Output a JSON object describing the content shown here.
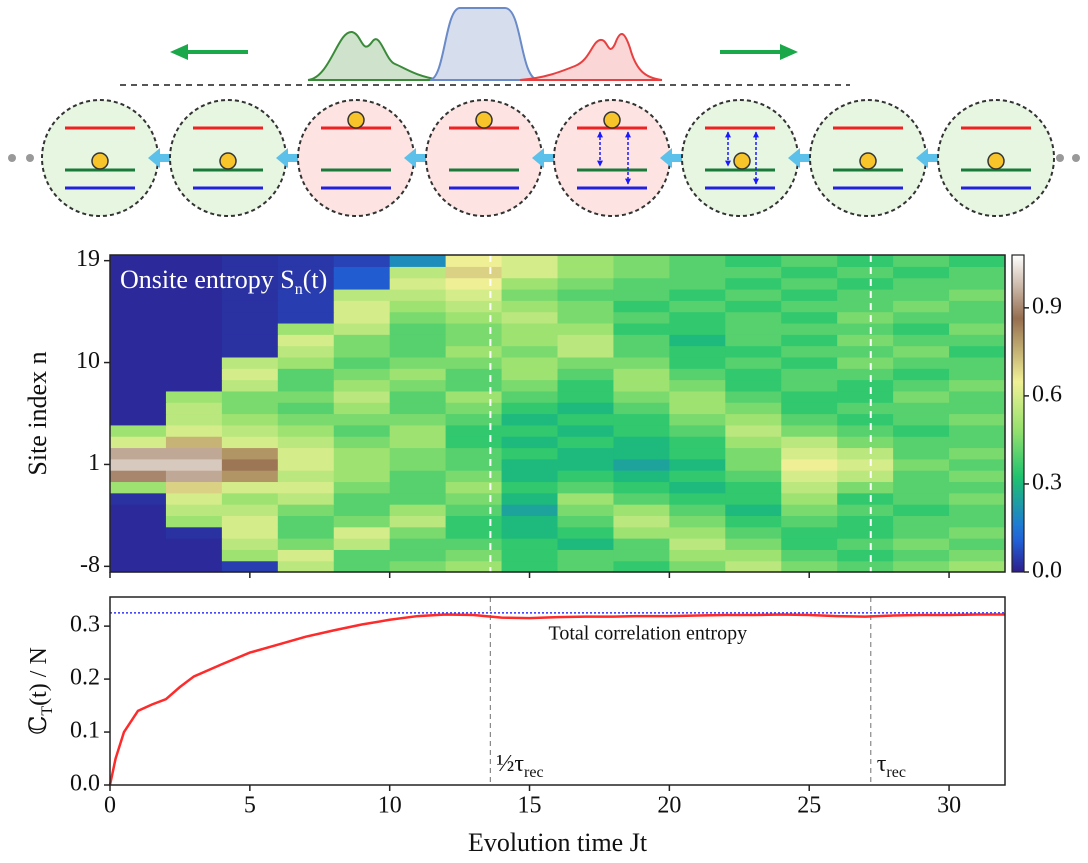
{
  "chart_data": [
    {
      "type": "heatmap",
      "annotation": {
        "main": "Onsite entropy S",
        "sub": "n",
        "rest": "(t)"
      },
      "y_label": "Site index n",
      "x": [
        1,
        3,
        5,
        7,
        9,
        11,
        13,
        15,
        17,
        19,
        21,
        23,
        25,
        27,
        29,
        31
      ],
      "y": [
        -8,
        -7,
        -6,
        -5,
        -4,
        -3,
        -2,
        -1,
        0,
        1,
        2,
        3,
        4,
        5,
        6,
        7,
        8,
        9,
        10,
        11,
        12,
        13,
        14,
        15,
        16,
        17,
        18,
        19
      ],
      "z": [
        [
          0.02,
          0.02,
          0.05,
          0.55,
          0.4,
          0.45,
          0.5,
          0.35,
          0.4,
          0.35,
          0.45,
          0.55,
          0.45,
          0.4,
          0.45,
          0.5
        ],
        [
          0.02,
          0.02,
          0.5,
          0.6,
          0.4,
          0.4,
          0.45,
          0.35,
          0.4,
          0.4,
          0.5,
          0.5,
          0.4,
          0.35,
          0.4,
          0.45
        ],
        [
          0.02,
          0.02,
          0.55,
          0.45,
          0.55,
          0.4,
          0.4,
          0.35,
          0.3,
          0.4,
          0.55,
          0.45,
          0.35,
          0.4,
          0.45,
          0.4
        ],
        [
          0.02,
          0.03,
          0.6,
          0.4,
          0.6,
          0.45,
          0.35,
          0.3,
          0.35,
          0.5,
          0.5,
          0.4,
          0.35,
          0.35,
          0.4,
          0.45
        ],
        [
          0.02,
          0.5,
          0.6,
          0.4,
          0.45,
          0.55,
          0.35,
          0.3,
          0.4,
          0.55,
          0.45,
          0.35,
          0.4,
          0.35,
          0.4,
          0.4
        ],
        [
          0.02,
          0.55,
          0.55,
          0.45,
          0.4,
          0.5,
          0.4,
          0.25,
          0.45,
          0.5,
          0.4,
          0.3,
          0.45,
          0.4,
          0.35,
          0.4
        ],
        [
          0.03,
          0.6,
          0.5,
          0.55,
          0.4,
          0.4,
          0.45,
          0.3,
          0.5,
          0.4,
          0.35,
          0.35,
          0.5,
          0.35,
          0.4,
          0.45
        ],
        [
          0.5,
          0.7,
          0.6,
          0.6,
          0.45,
          0.4,
          0.5,
          0.35,
          0.4,
          0.35,
          0.3,
          0.35,
          0.55,
          0.45,
          0.4,
          0.4
        ],
        [
          0.9,
          0.95,
          0.8,
          0.55,
          0.5,
          0.4,
          0.45,
          0.3,
          0.35,
          0.3,
          0.35,
          0.4,
          0.6,
          0.55,
          0.4,
          0.45
        ],
        [
          1.0,
          1.0,
          0.85,
          0.6,
          0.5,
          0.45,
          0.4,
          0.3,
          0.3,
          0.25,
          0.3,
          0.45,
          0.65,
          0.6,
          0.45,
          0.4
        ],
        [
          0.95,
          0.95,
          0.8,
          0.6,
          0.5,
          0.45,
          0.4,
          0.35,
          0.3,
          0.3,
          0.35,
          0.45,
          0.6,
          0.55,
          0.4,
          0.45
        ],
        [
          0.6,
          0.75,
          0.6,
          0.55,
          0.45,
          0.5,
          0.35,
          0.3,
          0.35,
          0.3,
          0.35,
          0.5,
          0.55,
          0.45,
          0.4,
          0.4
        ],
        [
          0.5,
          0.6,
          0.55,
          0.5,
          0.4,
          0.5,
          0.35,
          0.35,
          0.3,
          0.35,
          0.4,
          0.55,
          0.45,
          0.4,
          0.35,
          0.4
        ],
        [
          0.02,
          0.55,
          0.5,
          0.45,
          0.45,
          0.45,
          0.4,
          0.3,
          0.35,
          0.35,
          0.45,
          0.5,
          0.4,
          0.35,
          0.4,
          0.45
        ],
        [
          0.02,
          0.55,
          0.45,
          0.4,
          0.5,
          0.4,
          0.45,
          0.35,
          0.3,
          0.4,
          0.5,
          0.45,
          0.35,
          0.4,
          0.4,
          0.4
        ],
        [
          0.02,
          0.5,
          0.45,
          0.45,
          0.55,
          0.4,
          0.5,
          0.4,
          0.35,
          0.45,
          0.5,
          0.4,
          0.35,
          0.35,
          0.45,
          0.4
        ],
        [
          0.02,
          0.02,
          0.55,
          0.4,
          0.5,
          0.45,
          0.4,
          0.45,
          0.35,
          0.5,
          0.45,
          0.35,
          0.4,
          0.35,
          0.4,
          0.45
        ],
        [
          0.02,
          0.02,
          0.6,
          0.4,
          0.45,
          0.5,
          0.4,
          0.5,
          0.4,
          0.5,
          0.4,
          0.35,
          0.4,
          0.4,
          0.35,
          0.4
        ],
        [
          0.02,
          0.02,
          0.55,
          0.5,
          0.4,
          0.45,
          0.45,
          0.5,
          0.45,
          0.45,
          0.35,
          0.4,
          0.35,
          0.45,
          0.4,
          0.4
        ],
        [
          0.02,
          0.02,
          0.03,
          0.55,
          0.45,
          0.4,
          0.5,
          0.45,
          0.55,
          0.4,
          0.35,
          0.35,
          0.4,
          0.4,
          0.45,
          0.35
        ],
        [
          0.02,
          0.02,
          0.03,
          0.6,
          0.45,
          0.4,
          0.45,
          0.5,
          0.55,
          0.4,
          0.3,
          0.4,
          0.35,
          0.45,
          0.4,
          0.4
        ],
        [
          0.02,
          0.02,
          0.03,
          0.5,
          0.55,
          0.4,
          0.45,
          0.5,
          0.5,
          0.35,
          0.35,
          0.4,
          0.4,
          0.4,
          0.35,
          0.45
        ],
        [
          0.02,
          0.02,
          0.03,
          0.05,
          0.6,
          0.45,
          0.5,
          0.55,
          0.45,
          0.4,
          0.35,
          0.4,
          0.35,
          0.45,
          0.4,
          0.4
        ],
        [
          0.02,
          0.02,
          0.03,
          0.05,
          0.6,
          0.5,
          0.55,
          0.5,
          0.45,
          0.35,
          0.4,
          0.35,
          0.4,
          0.4,
          0.45,
          0.4
        ],
        [
          0.02,
          0.02,
          0.03,
          0.05,
          0.55,
          0.55,
          0.6,
          0.45,
          0.4,
          0.4,
          0.35,
          0.4,
          0.35,
          0.4,
          0.4,
          0.45
        ],
        [
          0.02,
          0.02,
          0.03,
          0.04,
          0.1,
          0.6,
          0.65,
          0.5,
          0.45,
          0.4,
          0.4,
          0.35,
          0.4,
          0.35,
          0.4,
          0.4
        ],
        [
          0.02,
          0.02,
          0.03,
          0.04,
          0.1,
          0.55,
          0.7,
          0.6,
          0.5,
          0.45,
          0.4,
          0.4,
          0.35,
          0.4,
          0.35,
          0.4
        ],
        [
          0.02,
          0.02,
          0.03,
          0.04,
          0.06,
          0.2,
          0.65,
          0.6,
          0.5,
          0.45,
          0.4,
          0.35,
          0.4,
          0.35,
          0.4,
          0.35
        ]
      ],
      "xlim": [
        0,
        32
      ],
      "ylim": [
        -8.5,
        19.5
      ],
      "xticks": [
        0,
        5,
        10,
        15,
        20,
        25,
        30
      ],
      "yticks": [
        19,
        10,
        1,
        -8
      ],
      "zlim": [
        0,
        1.08
      ],
      "zticks": [
        {
          "value": 0,
          "label": "0.0"
        },
        {
          "value": 0.3,
          "label": "0.3"
        },
        {
          "value": 0.6,
          "label": "0.6"
        },
        {
          "value": 0.9,
          "label": "0.9"
        }
      ],
      "vlines": [
        13.6,
        27.2
      ]
    },
    {
      "type": "line",
      "x_label": "Evolution time Jt",
      "y_label": {
        "symbol": "ℂ",
        "sub": "T",
        "rest": "(t) / N"
      },
      "x": [
        0,
        0.2,
        0.5,
        1,
        1.5,
        2,
        2.5,
        3,
        4,
        5,
        6,
        7,
        8,
        9,
        10,
        11,
        12,
        13,
        14,
        15,
        16,
        17,
        18,
        19,
        20,
        21,
        22,
        23,
        24,
        25,
        26,
        27,
        28,
        29,
        30,
        31,
        32
      ],
      "series": [
        {
          "name": "Total correlation entropy",
          "color": "#ff2a2a",
          "values": [
            0,
            0.05,
            0.1,
            0.14,
            0.152,
            0.162,
            0.185,
            0.205,
            0.228,
            0.25,
            0.265,
            0.28,
            0.292,
            0.303,
            0.312,
            0.319,
            0.322,
            0.321,
            0.316,
            0.315,
            0.317,
            0.318,
            0.318,
            0.319,
            0.319,
            0.32,
            0.321,
            0.321,
            0.322,
            0.321,
            0.319,
            0.318,
            0.32,
            0.321,
            0.321,
            0.322,
            0.322
          ]
        }
      ],
      "reference": {
        "value": 0.325,
        "color": "#3030ff"
      },
      "xlim": [
        0,
        32
      ],
      "ylim": [
        0,
        0.355
      ],
      "xticks": [
        0,
        5,
        10,
        15,
        20,
        25,
        30
      ],
      "yticks": [
        {
          "value": 0,
          "label": "0.0"
        },
        {
          "value": 0.1,
          "label": "0.1"
        },
        {
          "value": 0.2,
          "label": "0.2"
        },
        {
          "value": 0.3,
          "label": "0.3"
        }
      ],
      "vlines": [
        {
          "value": 13.6,
          "label": {
            "main": "½τ",
            "sub": "rec"
          }
        },
        {
          "value": 27.2,
          "label": {
            "main": "τ",
            "sub": "rec"
          }
        }
      ]
    }
  ]
}
